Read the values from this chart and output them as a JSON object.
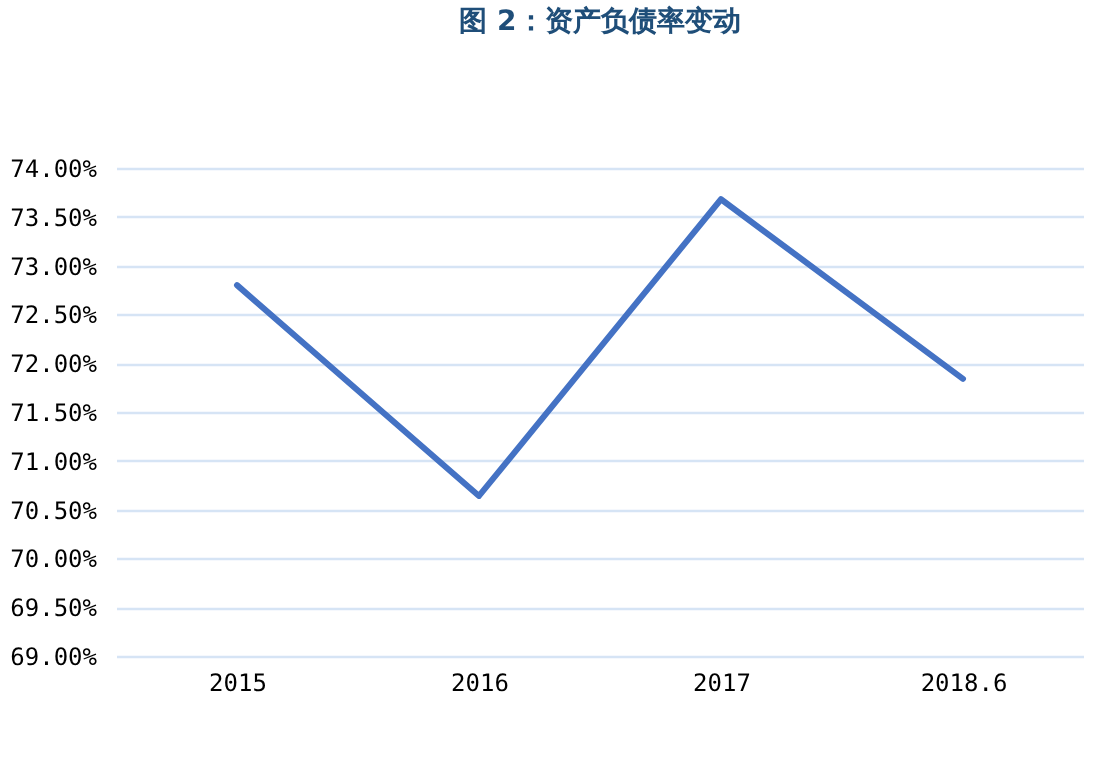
{
  "chart_data": {
    "type": "line",
    "title": "图 2：资产负债率变动",
    "categories": [
      "2015",
      "2016",
      "2017",
      "2018.6"
    ],
    "series": [
      {
        "color": "#4472c4",
        "values": [
          72.8,
          70.64,
          73.68,
          71.84
        ]
      }
    ],
    "ylim": [
      69,
      74
    ],
    "yticks": [
      {
        "value": 69,
        "label": "69.00%"
      },
      {
        "value": 69.5,
        "label": "69.50%"
      },
      {
        "value": 70,
        "label": "70.00%"
      },
      {
        "value": 70.5,
        "label": "70.50%"
      },
      {
        "value": 71,
        "label": "71.00%"
      },
      {
        "value": 71.5,
        "label": "71.50%"
      },
      {
        "value": 72,
        "label": "72.00%"
      },
      {
        "value": 72.5,
        "label": "72.50%"
      },
      {
        "value": 73,
        "label": "73.00%"
      },
      {
        "value": 73.5,
        "label": "73.50%"
      },
      {
        "value": 74,
        "label": "74.00%"
      }
    ],
    "grid": "y",
    "marker": "none",
    "line_style": "solid"
  }
}
